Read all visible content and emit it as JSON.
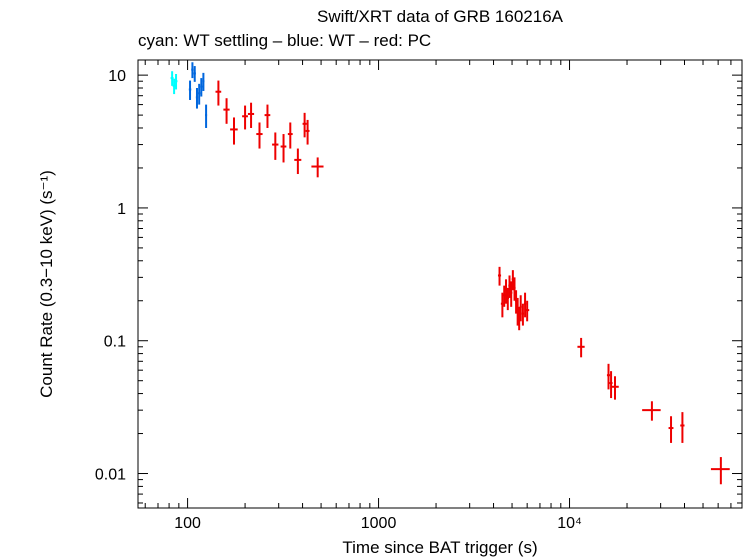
{
  "chart_data": {
    "type": "scatter",
    "title": "Swift/XRT data of GRB 160216A",
    "subtitle": "cyan: WT settling – blue: WT – red: PC",
    "xlabel": "Time since BAT trigger (s)",
    "ylabel": "Count Rate (0.3−10 keV) (s⁻¹)",
    "xscale": "log",
    "yscale": "log",
    "xlim": [
      55,
      80000
    ],
    "ylim": [
      0.0055,
      13
    ],
    "x_ticks": [
      {
        "value": 100,
        "label": "100"
      },
      {
        "value": 1000,
        "label": "1000"
      },
      {
        "value": 10000,
        "label": "10⁴"
      }
    ],
    "y_ticks": [
      {
        "value": 0.01,
        "label": "0.01"
      },
      {
        "value": 0.1,
        "label": "0.1"
      },
      {
        "value": 1,
        "label": "1"
      },
      {
        "value": 10,
        "label": "10"
      }
    ],
    "series": [
      {
        "name": "WT settling",
        "color": "#00ffff",
        "points": [
          {
            "x": 83,
            "xerr": 1.5,
            "y": 9.5,
            "yerr": 1.2
          },
          {
            "x": 85,
            "xerr": 1.5,
            "y": 8.3,
            "yerr": 1.1
          },
          {
            "x": 87,
            "xerr": 1.5,
            "y": 9.0,
            "yerr": 1.2
          }
        ]
      },
      {
        "name": "WT",
        "color": "#0066dd",
        "points": [
          {
            "x": 103,
            "xerr": 1.5,
            "y": 7.8,
            "yerr": 1.3
          },
          {
            "x": 106,
            "xerr": 1.5,
            "y": 11.0,
            "yerr": 1.5
          },
          {
            "x": 109,
            "xerr": 1.5,
            "y": 10.3,
            "yerr": 1.4
          },
          {
            "x": 112,
            "xerr": 1.5,
            "y": 6.8,
            "yerr": 1.2
          },
          {
            "x": 115,
            "xerr": 1.5,
            "y": 7.3,
            "yerr": 1.3
          },
          {
            "x": 118,
            "xerr": 1.5,
            "y": 8.2,
            "yerr": 1.3
          },
          {
            "x": 121,
            "xerr": 1.5,
            "y": 9.0,
            "yerr": 1.4
          },
          {
            "x": 125,
            "xerr": 1.5,
            "y": 5.0,
            "yerr": 1.0
          }
        ]
      },
      {
        "name": "PC",
        "color": "#ee0000",
        "points": [
          {
            "x": 145,
            "xerr": 5,
            "y": 7.5,
            "yerr": 1.6
          },
          {
            "x": 160,
            "xerr": 6,
            "y": 5.5,
            "yerr": 1.2
          },
          {
            "x": 175,
            "xerr": 8,
            "y": 3.9,
            "yerr": 0.9
          },
          {
            "x": 200,
            "xerr": 7,
            "y": 4.9,
            "yerr": 1.0
          },
          {
            "x": 215,
            "xerr": 8,
            "y": 5.1,
            "yerr": 1.1
          },
          {
            "x": 238,
            "xerr": 9,
            "y": 3.6,
            "yerr": 0.8
          },
          {
            "x": 262,
            "xerr": 9,
            "y": 5.0,
            "yerr": 1.0
          },
          {
            "x": 288,
            "xerr": 11,
            "y": 3.0,
            "yerr": 0.7
          },
          {
            "x": 318,
            "xerr": 11,
            "y": 2.9,
            "yerr": 0.7
          },
          {
            "x": 345,
            "xerr": 10,
            "y": 3.6,
            "yerr": 0.8
          },
          {
            "x": 378,
            "xerr": 16,
            "y": 2.3,
            "yerr": 0.5
          },
          {
            "x": 410,
            "xerr": 10,
            "y": 4.3,
            "yerr": 0.9
          },
          {
            "x": 425,
            "xerr": 10,
            "y": 3.8,
            "yerr": 0.8
          },
          {
            "x": 480,
            "xerr": 35,
            "y": 2.05,
            "yerr": 0.35
          },
          {
            "x": 4300,
            "xerr": 80,
            "y": 0.31,
            "yerr": 0.05
          },
          {
            "x": 4450,
            "xerr": 80,
            "y": 0.19,
            "yerr": 0.04
          },
          {
            "x": 4550,
            "xerr": 70,
            "y": 0.22,
            "yerr": 0.04
          },
          {
            "x": 4650,
            "xerr": 70,
            "y": 0.24,
            "yerr": 0.05
          },
          {
            "x": 4750,
            "xerr": 70,
            "y": 0.21,
            "yerr": 0.04
          },
          {
            "x": 4850,
            "xerr": 70,
            "y": 0.26,
            "yerr": 0.05
          },
          {
            "x": 4950,
            "xerr": 70,
            "y": 0.23,
            "yerr": 0.05
          },
          {
            "x": 5050,
            "xerr": 70,
            "y": 0.29,
            "yerr": 0.05
          },
          {
            "x": 5150,
            "xerr": 70,
            "y": 0.25,
            "yerr": 0.05
          },
          {
            "x": 5250,
            "xerr": 70,
            "y": 0.2,
            "yerr": 0.04
          },
          {
            "x": 5350,
            "xerr": 70,
            "y": 0.17,
            "yerr": 0.04
          },
          {
            "x": 5450,
            "xerr": 70,
            "y": 0.15,
            "yerr": 0.03
          },
          {
            "x": 5550,
            "xerr": 70,
            "y": 0.18,
            "yerr": 0.04
          },
          {
            "x": 5700,
            "xerr": 80,
            "y": 0.16,
            "yerr": 0.03
          },
          {
            "x": 5850,
            "xerr": 80,
            "y": 0.19,
            "yerr": 0.04
          },
          {
            "x": 6000,
            "xerr": 150,
            "y": 0.17,
            "yerr": 0.03
          },
          {
            "x": 11500,
            "xerr": 500,
            "y": 0.09,
            "yerr": 0.015
          },
          {
            "x": 16000,
            "xerr": 300,
            "y": 0.055,
            "yerr": 0.012
          },
          {
            "x": 16500,
            "xerr": 300,
            "y": 0.048,
            "yerr": 0.011
          },
          {
            "x": 17300,
            "xerr": 800,
            "y": 0.045,
            "yerr": 0.009
          },
          {
            "x": 27000,
            "xerr": 3000,
            "y": 0.03,
            "yerr": 0.005
          },
          {
            "x": 34000,
            "xerr": 1000,
            "y": 0.022,
            "yerr": 0.005
          },
          {
            "x": 39000,
            "xerr": 1000,
            "y": 0.023,
            "yerr": 0.006
          },
          {
            "x": 62000,
            "xerr": 7000,
            "y": 0.0108,
            "yerr": 0.0025
          }
        ]
      }
    ]
  }
}
